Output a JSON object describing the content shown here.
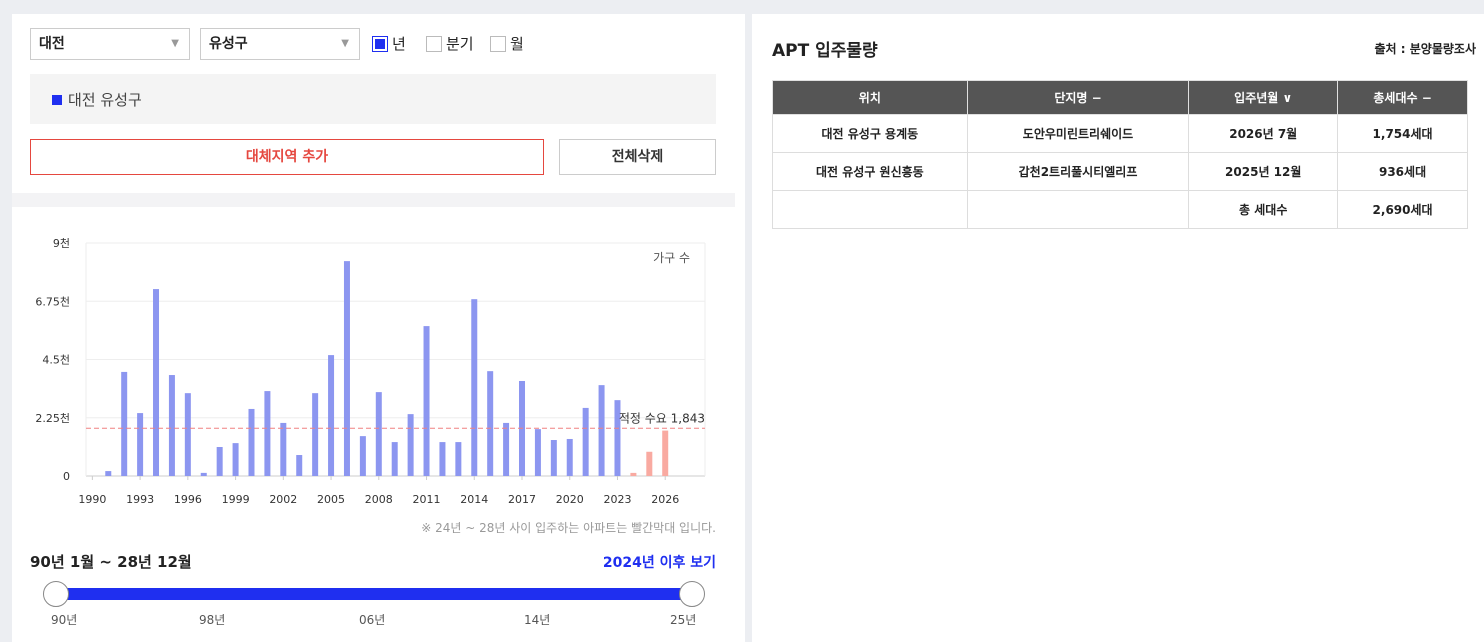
{
  "controls": {
    "region": "대전",
    "district": "유성구",
    "period_options": [
      {
        "label": "년",
        "checked": true
      },
      {
        "label": "분기",
        "checked": false
      },
      {
        "label": "월",
        "checked": false
      }
    ],
    "selected_region": "대전 유성구",
    "add_button": "대체지역 추가",
    "clear_button": "전체삭제"
  },
  "chart_data": {
    "type": "bar",
    "series_label": "가구 수",
    "x": [
      1991,
      1992,
      1993,
      1994,
      1995,
      1996,
      1997,
      1998,
      1999,
      2000,
      2001,
      2002,
      2003,
      2004,
      2005,
      2006,
      2007,
      2008,
      2009,
      2010,
      2011,
      2012,
      2013,
      2014,
      2015,
      2016,
      2017,
      2018,
      2019,
      2020,
      2021,
      2022,
      2023,
      2024,
      2025,
      2026
    ],
    "values": [
      190,
      4020,
      2430,
      7220,
      3900,
      3200,
      120,
      1120,
      1270,
      2590,
      3280,
      2050,
      810,
      3200,
      4670,
      8300,
      1540,
      3240,
      1310,
      2390,
      5790,
      1310,
      1310,
      6830,
      4050,
      2050,
      3670,
      1810,
      1390,
      1430,
      2630,
      3510,
      2930,
      120,
      936,
      1754
    ],
    "colors": [
      "#8c96f0",
      "#8c96f0",
      "#8c96f0",
      "#8c96f0",
      "#8c96f0",
      "#8c96f0",
      "#8c96f0",
      "#8c96f0",
      "#8c96f0",
      "#8c96f0",
      "#8c96f0",
      "#8c96f0",
      "#8c96f0",
      "#8c96f0",
      "#8c96f0",
      "#8c96f0",
      "#8c96f0",
      "#8c96f0",
      "#8c96f0",
      "#8c96f0",
      "#8c96f0",
      "#8c96f0",
      "#8c96f0",
      "#8c96f0",
      "#8c96f0",
      "#8c96f0",
      "#8c96f0",
      "#8c96f0",
      "#8c96f0",
      "#8c96f0",
      "#8c96f0",
      "#8c96f0",
      "#8c96f0",
      "#f9aaa1",
      "#f9aaa1",
      "#f9aaa1"
    ],
    "xlim": [
      1989.6,
      2028.5
    ],
    "xticks": [
      1990,
      1993,
      1996,
      1999,
      2002,
      2005,
      2008,
      2011,
      2014,
      2017,
      2020,
      2023,
      2026
    ],
    "ylim": [
      0,
      9000
    ],
    "yticks": [
      0,
      {
        "value": 2250,
        "label": "2.25천"
      },
      {
        "value": 4500,
        "label": "4.5천"
      },
      {
        "value": 6750,
        "label": "6.75천"
      },
      {
        "value": 9000,
        "label": "9천"
      }
    ],
    "grid": true,
    "reference_line": {
      "value": 1843,
      "label": "적정 수요 1,843",
      "color": "#f08080"
    },
    "note": "※ 24년 ~ 28년 사이 입주하는 아파트는 빨간막대 입니다."
  },
  "slider": {
    "range_text": "90년 1월 ~ 28년 12월",
    "link": "2024년 이후 보기",
    "labels": [
      "90년",
      "98년",
      "06년",
      "14년",
      "25년"
    ]
  },
  "table": {
    "title": "APT 입주물량",
    "source": "출처 : 분양물량조사",
    "headers": [
      "위치",
      "단지명 −",
      "입주년월 ∨",
      "총세대수 −"
    ],
    "rows": [
      [
        "대전 유성구 용계동",
        "도안우미린트리쉐이드",
        "2026년 7월",
        "1,754세대"
      ],
      [
        "대전 유성구 원신흥동",
        "갑천2트리풀시티엘리프",
        "2025년 12월",
        "936세대"
      ],
      [
        "",
        "",
        "총 세대수",
        "2,690세대"
      ]
    ]
  }
}
